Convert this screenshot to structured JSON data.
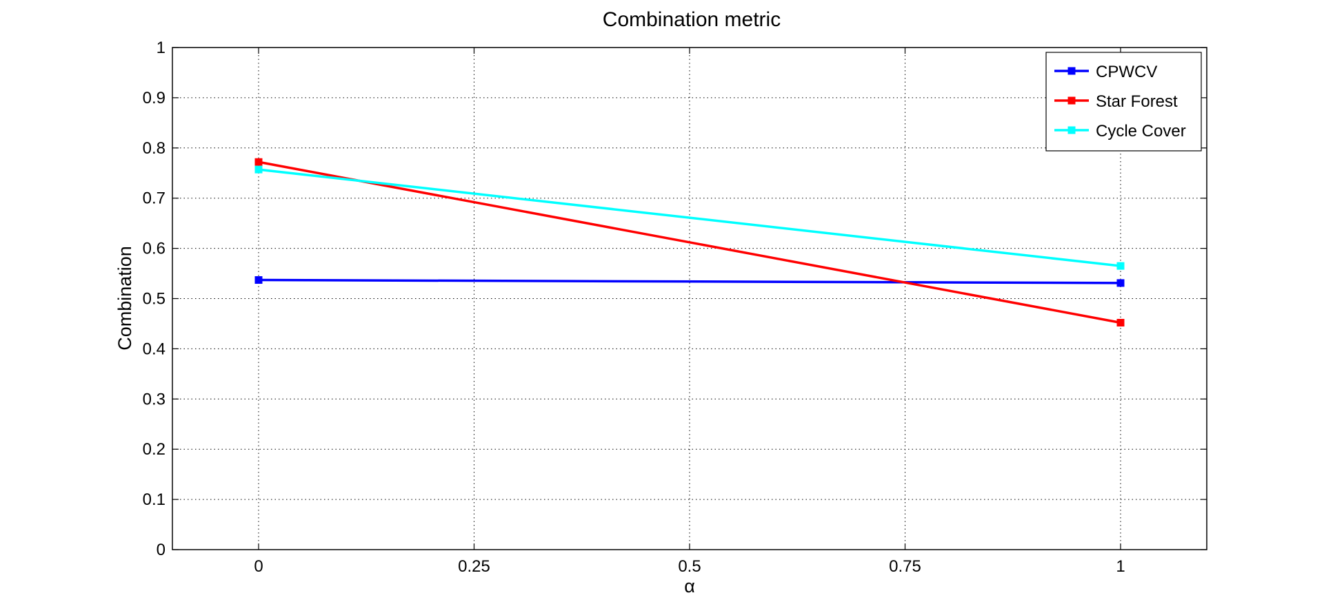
{
  "chart_data": {
    "type": "line",
    "title": "Combination metric",
    "xlabel": "α",
    "ylabel": "Combination",
    "xlim": [
      -0.2,
      2.2
    ],
    "ylim": [
      0,
      1
    ],
    "x_ticks": [
      0,
      0.5,
      1,
      1.5,
      2
    ],
    "x_tick_labels": [
      "0",
      "0.25",
      "0.5",
      "0.75",
      "1"
    ],
    "y_ticks": [
      0,
      0.1,
      0.2,
      0.3,
      0.4,
      0.5,
      0.6,
      0.7,
      0.8,
      0.9,
      1
    ],
    "y_tick_labels": [
      "0",
      "0.1",
      "0.2",
      "0.3",
      "0.4",
      "0.5",
      "0.6",
      "0.7",
      "0.8",
      "0.9",
      "1"
    ],
    "grid": true,
    "legend_position": "top-right",
    "series": [
      {
        "name": "CPWCV",
        "color": "#0000ff",
        "x": [
          0,
          2
        ],
        "y": [
          0.537,
          0.531
        ]
      },
      {
        "name": "Star Forest",
        "color": "#ff0000",
        "x": [
          0,
          2
        ],
        "y": [
          0.772,
          0.452
        ]
      },
      {
        "name": "Cycle Cover",
        "color": "#00ffff",
        "x": [
          0,
          2
        ],
        "y": [
          0.757,
          0.565
        ]
      }
    ]
  }
}
